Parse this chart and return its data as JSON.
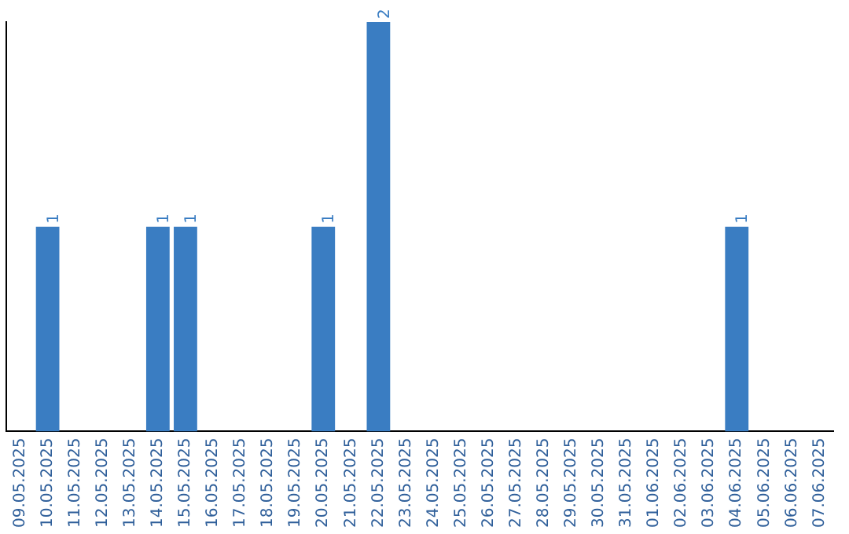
{
  "chart_data": {
    "type": "bar",
    "categories": [
      "09.05.2025",
      "10.05.2025",
      "11.05.2025",
      "12.05.2025",
      "13.05.2025",
      "14.05.2025",
      "15.05.2025",
      "16.05.2025",
      "17.05.2025",
      "18.05.2025",
      "19.05.2025",
      "20.05.2025",
      "21.05.2025",
      "22.05.2025",
      "23.05.2025",
      "24.05.2025",
      "25.05.2025",
      "26.05.2025",
      "27.05.2025",
      "28.05.2025",
      "29.05.2025",
      "30.05.2025",
      "31.05.2025",
      "01.06.2025",
      "02.06.2025",
      "03.06.2025",
      "04.06.2025",
      "05.06.2025",
      "06.06.2025",
      "07.06.2025"
    ],
    "values": [
      0,
      1,
      0,
      0,
      0,
      1,
      1,
      0,
      0,
      0,
      0,
      1,
      0,
      2,
      0,
      0,
      0,
      0,
      0,
      0,
      0,
      0,
      0,
      0,
      0,
      0,
      1,
      0,
      0,
      0
    ],
    "value_labels": [
      null,
      "1",
      null,
      null,
      null,
      "1",
      "1",
      null,
      null,
      null,
      null,
      "1",
      null,
      "2",
      null,
      null,
      null,
      null,
      null,
      null,
      null,
      null,
      null,
      null,
      null,
      null,
      "1",
      null,
      null,
      null
    ],
    "color": "#3a7dc2",
    "grid": false,
    "legend": false,
    "tick_labels": "x"
  }
}
